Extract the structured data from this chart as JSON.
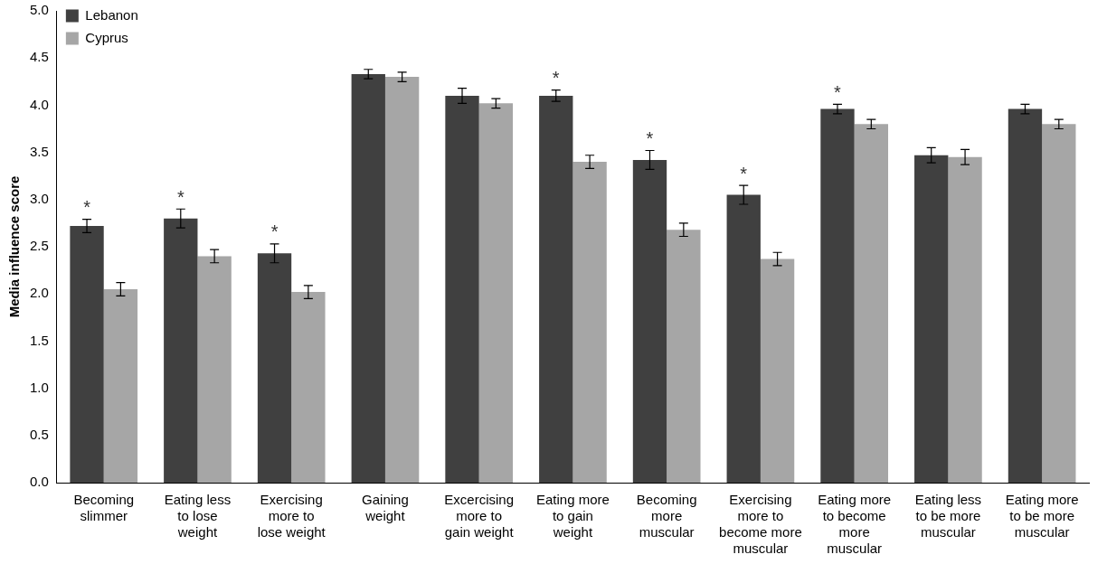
{
  "chart_data": {
    "type": "bar",
    "ylabel": "Media influence score",
    "categories": [
      "Becoming slimmer",
      "Eating less to lose weight",
      "Exercising more to lose weight",
      "Gaining weight",
      "Excercising more to gain weight",
      "Eating more to gain weight",
      "Becoming more muscular",
      "Exercising more to become more muscular",
      "Eating more to become more muscular",
      "Eating less to be more muscular",
      "Eating more to be more muscular"
    ],
    "series": [
      {
        "name": "Lebanon",
        "color": "#404040",
        "values": [
          2.72,
          2.8,
          2.43,
          4.33,
          4.1,
          4.1,
          3.42,
          3.05,
          3.96,
          3.47,
          3.96
        ],
        "errors": [
          0.07,
          0.1,
          0.1,
          0.05,
          0.08,
          0.06,
          0.1,
          0.1,
          0.05,
          0.08,
          0.05
        ]
      },
      {
        "name": "Cyprus",
        "color": "#a6a6a6",
        "values": [
          2.05,
          2.4,
          2.02,
          4.3,
          4.02,
          3.4,
          2.68,
          2.37,
          3.8,
          3.45,
          3.8
        ],
        "errors": [
          0.07,
          0.07,
          0.07,
          0.05,
          0.05,
          0.07,
          0.07,
          0.07,
          0.05,
          0.08,
          0.05
        ]
      }
    ],
    "ylim": [
      0,
      5
    ],
    "yticks": [
      {
        "value": 0,
        "label": "0.0"
      },
      {
        "value": 0.5,
        "label": "0.5"
      },
      {
        "value": 1,
        "label": "1.0"
      },
      {
        "value": 1.5,
        "label": "1.5"
      },
      {
        "value": 2,
        "label": "2.0"
      },
      {
        "value": 2.5,
        "label": "2.5"
      },
      {
        "value": 3,
        "label": "3.0"
      },
      {
        "value": 3.5,
        "label": "3.5"
      },
      {
        "value": 4,
        "label": "4.0"
      },
      {
        "value": 4.5,
        "label": "4.5"
      },
      {
        "value": 5,
        "label": "5.0"
      }
    ],
    "grid": false,
    "legend": "top left",
    "annotations": [
      {
        "text": "*",
        "x": "Becoming slimmer",
        "y": 2.72
      },
      {
        "text": "*",
        "x": "Eating less to lose weight",
        "y": 2.8
      },
      {
        "text": "*",
        "x": "Exercising more to lose weight",
        "y": 2.43
      },
      {
        "text": "*",
        "x": "Eating more to gain weight",
        "y": 4.1
      },
      {
        "text": "*",
        "x": "Becoming more muscular",
        "y": 3.42
      },
      {
        "text": "*",
        "x": "Exercising more to become more muscular",
        "y": 3.05
      },
      {
        "text": "*",
        "x": "Eating more to become more muscular",
        "y": 3.96
      }
    ]
  }
}
